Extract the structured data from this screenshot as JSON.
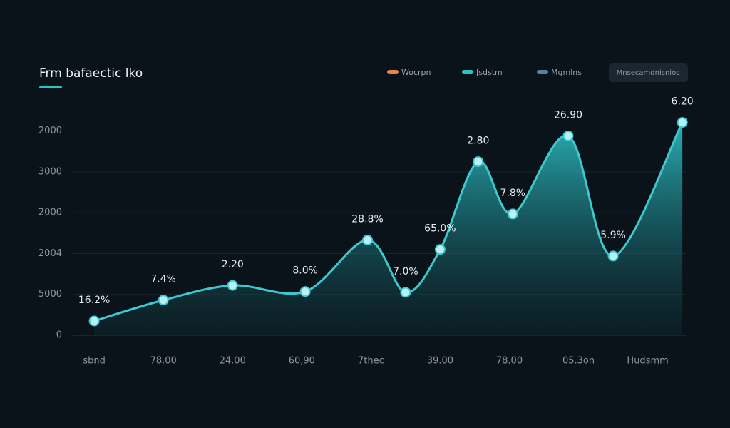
{
  "chart_data": {
    "type": "line",
    "title": "Frm bafaectic lko",
    "legend": [
      {
        "name": "Wocrpn",
        "color": "#e8834f"
      },
      {
        "name": "Jsdstm",
        "color": "#2cc4c4"
      },
      {
        "name": "Mgmlns",
        "color": "#5f7f9e"
      }
    ],
    "button": "Mnsecamdnisnios",
    "x": [
      0,
      1,
      2,
      3.05,
      3.95,
      4.5,
      5,
      5.55,
      6.05,
      6.85,
      7.5,
      8.5
    ],
    "series": [
      {
        "name": "Jsdstm",
        "color": "#3fc9cf",
        "values": [
          0.35,
          0.86,
          1.22,
          1.07,
          2.33,
          1.05,
          2.1,
          4.25,
          2.97,
          4.88,
          1.94,
          5.21
        ]
      }
    ],
    "point_labels": [
      "16.2%",
      "7.4%",
      "2.20",
      "8.0%",
      "28.8%",
      "7.0%",
      "65.0%",
      "2.80",
      "7.8%",
      "26.90",
      "5.9%",
      "6.20"
    ],
    "xlim": [
      -0.3,
      8.55
    ],
    "xticks": [
      {
        "value": 0,
        "label": "sbnd"
      },
      {
        "value": 1,
        "label": "78.00"
      },
      {
        "value": 2,
        "label": "24.00"
      },
      {
        "value": 3,
        "label": "60,90"
      },
      {
        "value": 4,
        "label": "7thec"
      },
      {
        "value": 5,
        "label": "39.00"
      },
      {
        "value": 6,
        "label": "78.00"
      },
      {
        "value": 7,
        "label": "05.3on"
      },
      {
        "value": 8,
        "label": "Hudsmm"
      }
    ],
    "ylim": [
      0,
      5.5
    ],
    "yticks": [
      0,
      {
        "value": 1,
        "label": "5000"
      },
      {
        "value": 2,
        "label": "2004"
      },
      {
        "value": 3,
        "label": "2000"
      },
      {
        "value": 4,
        "label": "3000"
      },
      {
        "value": 5,
        "label": "2000"
      }
    ],
    "grid": true
  }
}
